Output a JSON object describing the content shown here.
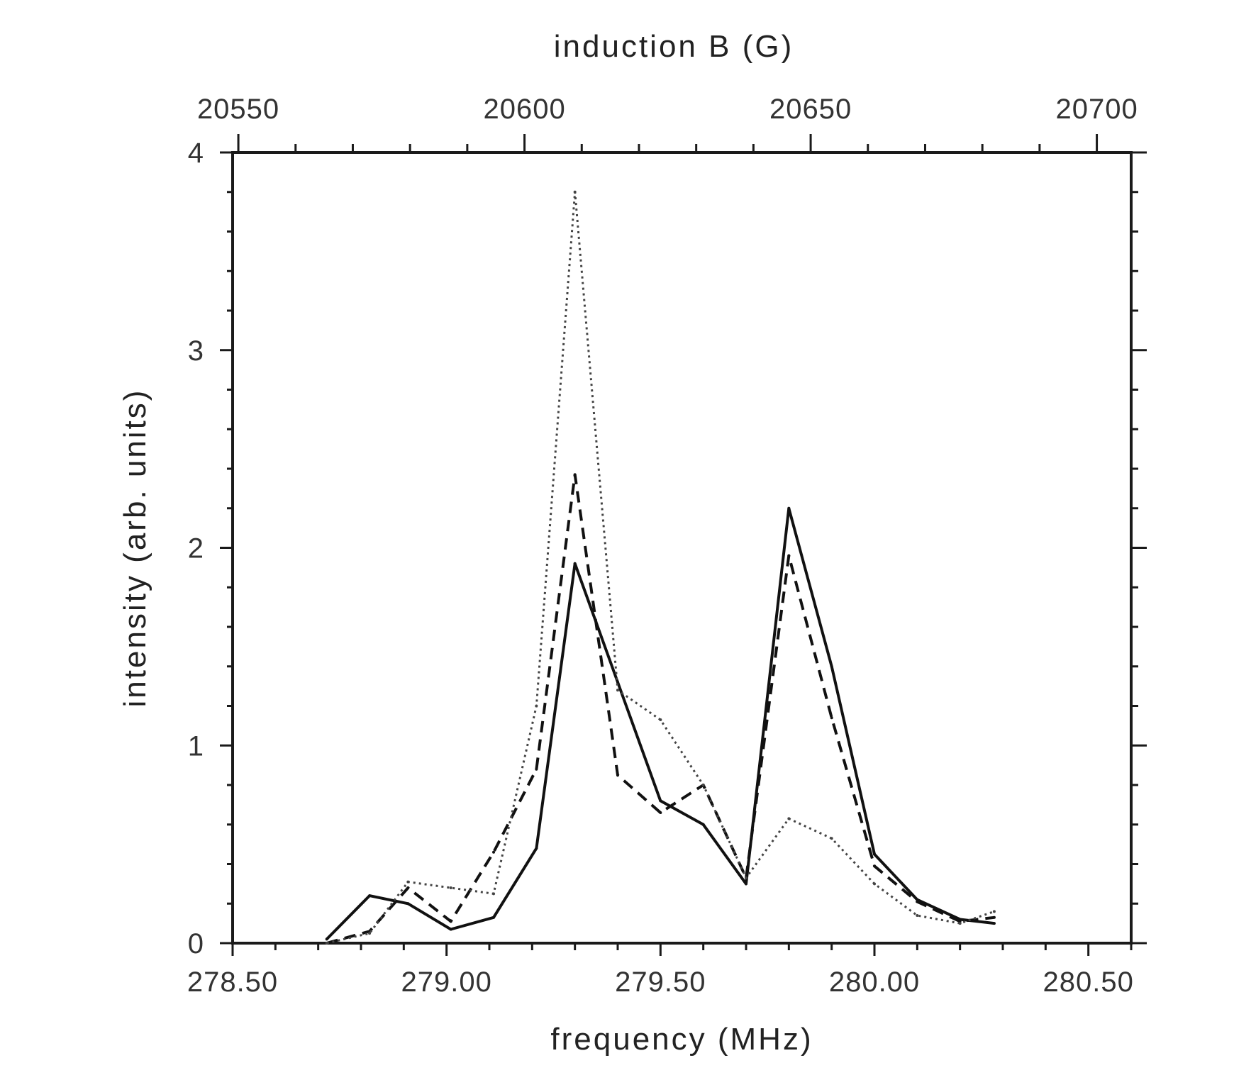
{
  "chart_data": {
    "type": "line",
    "title": "",
    "xlabel": "frequency (MHz)",
    "x2label": "induction B (G)",
    "ylabel": "intensity (arb. units)",
    "xlim": [
      278.5,
      280.6
    ],
    "ylim": [
      0,
      4
    ],
    "x2lim": [
      20549,
      20706
    ],
    "grid": false,
    "legend": "none",
    "x_ticks": [
      {
        "value": 278.5,
        "label": "278.50"
      },
      {
        "value": 279.0,
        "label": "279.00"
      },
      {
        "value": 279.5,
        "label": "279.50"
      },
      {
        "value": 280.0,
        "label": "280.00"
      },
      {
        "value": 280.5,
        "label": "280.50"
      }
    ],
    "x2_ticks": [
      {
        "value": 20550,
        "label": "20550"
      },
      {
        "value": 20600,
        "label": "20600"
      },
      {
        "value": 20650,
        "label": "20650"
      },
      {
        "value": 20700,
        "label": "20700"
      }
    ],
    "y_ticks": [
      {
        "value": 0,
        "label": "0"
      },
      {
        "value": 1,
        "label": "1"
      },
      {
        "value": 2,
        "label": "2"
      },
      {
        "value": 3,
        "label": "3"
      },
      {
        "value": 4,
        "label": "4"
      }
    ],
    "series": [
      {
        "style": "solid",
        "color": "#111111",
        "points": [
          [
            278.72,
            0.02
          ],
          [
            278.82,
            0.24
          ],
          [
            278.91,
            0.2
          ],
          [
            279.01,
            0.07
          ],
          [
            279.11,
            0.13
          ],
          [
            279.21,
            0.48
          ],
          [
            279.3,
            1.92
          ],
          [
            279.4,
            1.32
          ],
          [
            279.5,
            0.72
          ],
          [
            279.6,
            0.6
          ],
          [
            279.7,
            0.3
          ],
          [
            279.8,
            2.2
          ],
          [
            279.9,
            1.4
          ],
          [
            280.0,
            0.45
          ],
          [
            280.1,
            0.22
          ],
          [
            280.2,
            0.12
          ],
          [
            280.28,
            0.1
          ]
        ]
      },
      {
        "style": "dashed",
        "color": "#111111",
        "points": [
          [
            278.72,
            0.0
          ],
          [
            278.82,
            0.06
          ],
          [
            278.91,
            0.28
          ],
          [
            279.01,
            0.11
          ],
          [
            279.11,
            0.46
          ],
          [
            279.21,
            0.88
          ],
          [
            279.3,
            2.37
          ],
          [
            279.4,
            0.85
          ],
          [
            279.5,
            0.66
          ],
          [
            279.6,
            0.8
          ],
          [
            279.7,
            0.33
          ],
          [
            279.8,
            1.96
          ],
          [
            279.9,
            1.14
          ],
          [
            280.0,
            0.39
          ],
          [
            280.1,
            0.21
          ],
          [
            280.2,
            0.11
          ],
          [
            280.28,
            0.13
          ]
        ]
      },
      {
        "style": "dotted",
        "color": "#444444",
        "points": [
          [
            278.72,
            0.0
          ],
          [
            278.82,
            0.05
          ],
          [
            278.91,
            0.31
          ],
          [
            279.01,
            0.28
          ],
          [
            279.11,
            0.25
          ],
          [
            279.21,
            1.2
          ],
          [
            279.3,
            3.8
          ],
          [
            279.4,
            1.28
          ],
          [
            279.5,
            1.13
          ],
          [
            279.6,
            0.8
          ],
          [
            279.7,
            0.33
          ],
          [
            279.8,
            0.63
          ],
          [
            279.9,
            0.53
          ],
          [
            280.0,
            0.3
          ],
          [
            280.1,
            0.14
          ],
          [
            280.2,
            0.1
          ],
          [
            280.28,
            0.16
          ]
        ]
      }
    ]
  }
}
